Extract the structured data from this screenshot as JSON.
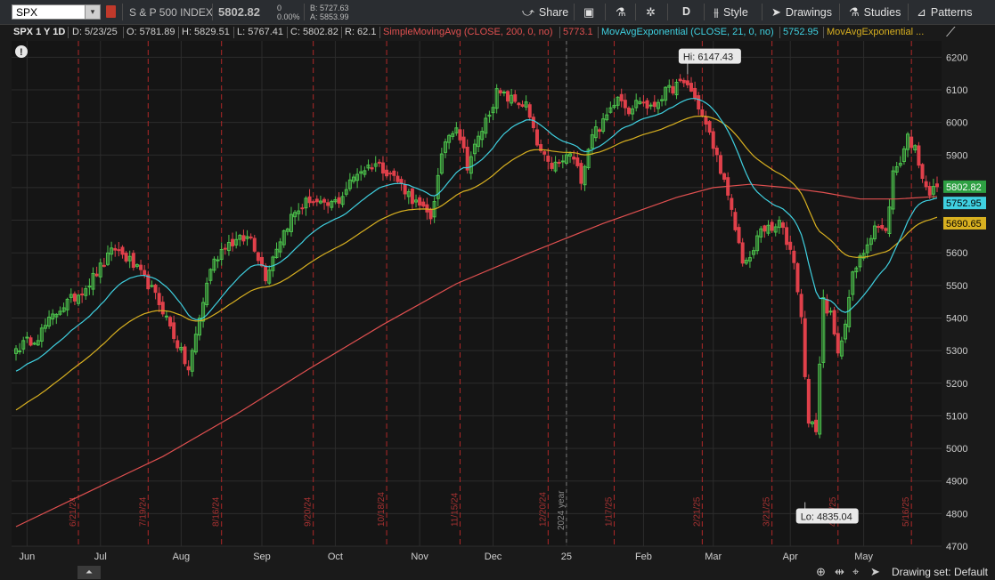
{
  "toolbar": {
    "symbol": "SPX",
    "dropdown_icon": "▾",
    "instrument_name": "S & P 500 INDEX",
    "last_price": "5802.82",
    "net_change": "0",
    "percent_change": "0.00%",
    "bid": "B: 5727.63",
    "ask": "A: 5853.99",
    "buttons": {
      "share": "Share",
      "timeframe": "D",
      "style": "Style",
      "drawings": "Drawings",
      "studies": "Studies",
      "patterns": "Patterns"
    }
  },
  "study_bar": {
    "title": "SPX 1 Y 1D",
    "date": "D: 5/23/25",
    "open": "O: 5781.89",
    "high": "H: 5829.51",
    "low": "L: 5767.41",
    "close": "C: 5802.82",
    "range": "R: 62.1",
    "sma_label": "SimpleMovingAvg (CLOSE, 200, 0, no)",
    "sma_value": "5773.1",
    "ema21_label": "MovAvgExponential (CLOSE, 21, 0, no)",
    "ema21_value": "5752.95",
    "ema3_label": "MovAvgExponential ..."
  },
  "alert_icon": "!",
  "colors": {
    "background": "#1a1a1a",
    "up": "#4cc34c",
    "down": "#e0404a",
    "sma200": "#e05050",
    "ema21": "#3fd0e0",
    "ema_yellow": "#d8b020",
    "period_line": "#b02828",
    "grid": "#2c2c2c"
  },
  "bottom_bar": {
    "drawing_set": "Drawing set: Default",
    "collapse_icon": "⏶"
  },
  "chart_data": {
    "type": "candlestick",
    "symbol": "SPX",
    "ylim": [
      4700,
      6250
    ],
    "yticks": [
      4700,
      4800,
      4900,
      5000,
      5100,
      5200,
      5300,
      5400,
      5500,
      5600,
      5700,
      5800,
      5900,
      6000,
      6100,
      6200
    ],
    "xticks": [
      {
        "label": "Jun",
        "index": 3
      },
      {
        "label": "Jul",
        "index": 23
      },
      {
        "label": "Aug",
        "index": 45
      },
      {
        "label": "Sep",
        "index": 67
      },
      {
        "label": "Oct",
        "index": 87
      },
      {
        "label": "Nov",
        "index": 110
      },
      {
        "label": "Dec",
        "index": 130
      },
      {
        "label": "25",
        "index": 150
      },
      {
        "label": "Feb",
        "index": 171
      },
      {
        "label": "Mar",
        "index": 190
      },
      {
        "label": "Apr",
        "index": 211
      },
      {
        "label": "May",
        "index": 231
      }
    ],
    "period_markers": [
      {
        "label": "6/21/24",
        "index": 17
      },
      {
        "label": "7/19/24",
        "index": 36
      },
      {
        "label": "8/16/24",
        "index": 56
      },
      {
        "label": "9/20/24",
        "index": 81
      },
      {
        "label": "10/18/24",
        "index": 101
      },
      {
        "label": "11/15/24",
        "index": 121
      },
      {
        "label": "12/20/24",
        "index": 145
      },
      {
        "label": "1/17/25",
        "index": 163
      },
      {
        "label": "2/21/25",
        "index": 187
      },
      {
        "label": "3/21/25",
        "index": 206
      },
      {
        "label": "4/17/25",
        "index": 224
      },
      {
        "label": "5/16/25",
        "index": 244
      }
    ],
    "year_marker": {
      "label": "2024 year",
      "index": 150
    },
    "high_label": {
      "text": "Hi: 6147.43",
      "index": 183,
      "value": 6147.43
    },
    "low_label": {
      "text": "Lo: 4835.04",
      "index": 215,
      "value": 4835.04
    },
    "anchors": [
      [
        0,
        5306
      ],
      [
        6,
        5346
      ],
      [
        12,
        5431
      ],
      [
        16,
        5464
      ],
      [
        20,
        5509
      ],
      [
        27,
        5615
      ],
      [
        31,
        5575
      ],
      [
        36,
        5505
      ],
      [
        40,
        5426
      ],
      [
        43,
        5346
      ],
      [
        47,
        5240
      ],
      [
        50,
        5400
      ],
      [
        53,
        5555
      ],
      [
        57,
        5627
      ],
      [
        60,
        5635
      ],
      [
        64,
        5649
      ],
      [
        68,
        5528
      ],
      [
        71,
        5620
      ],
      [
        75,
        5710
      ],
      [
        80,
        5765
      ],
      [
        84,
        5739
      ],
      [
        88,
        5762
      ],
      [
        93,
        5848
      ],
      [
        98,
        5875
      ],
      [
        102,
        5845
      ],
      [
        106,
        5795
      ],
      [
        110,
        5738
      ],
      [
        113,
        5710
      ],
      [
        117,
        5946
      ],
      [
        120,
        5996
      ],
      [
        123,
        5870
      ],
      [
        126,
        5950
      ],
      [
        131,
        6090
      ],
      [
        135,
        6070
      ],
      [
        139,
        6052
      ],
      [
        142,
        5930
      ],
      [
        145,
        5867
      ],
      [
        148,
        5870
      ],
      [
        151,
        5905
      ],
      [
        154,
        5830
      ],
      [
        157,
        5970
      ],
      [
        160,
        5996
      ],
      [
        164,
        6090
      ],
      [
        167,
        6040
      ],
      [
        170,
        6070
      ],
      [
        173,
        6040
      ],
      [
        176,
        6083
      ],
      [
        180,
        6114
      ],
      [
        183,
        6118
      ],
      [
        186,
        6050
      ],
      [
        189,
        5960
      ],
      [
        192,
        5860
      ],
      [
        195,
        5720
      ],
      [
        198,
        5580
      ],
      [
        200,
        5572
      ],
      [
        203,
        5680
      ],
      [
        206,
        5665
      ],
      [
        208,
        5693
      ],
      [
        212,
        5580
      ],
      [
        214,
        5396
      ],
      [
        216,
        5074
      ],
      [
        218,
        5062
      ],
      [
        220,
        5456
      ],
      [
        222,
        5405
      ],
      [
        224,
        5282
      ],
      [
        226,
        5398
      ],
      [
        228,
        5528
      ],
      [
        231,
        5604
      ],
      [
        234,
        5687
      ],
      [
        237,
        5660
      ],
      [
        239,
        5844
      ],
      [
        241,
        5886
      ],
      [
        243,
        5958
      ],
      [
        245,
        5916
      ],
      [
        247,
        5842
      ],
      [
        249,
        5781
      ],
      [
        251,
        5802.82
      ]
    ],
    "series": [
      {
        "name": "SimpleMovingAvg (CLOSE, 200, 0, no)",
        "last": 5773.1,
        "points": [
          [
            0,
            4760
          ],
          [
            20,
            4868
          ],
          [
            40,
            4975
          ],
          [
            60,
            5105
          ],
          [
            80,
            5245
          ],
          [
            100,
            5380
          ],
          [
            120,
            5505
          ],
          [
            140,
            5600
          ],
          [
            160,
            5690
          ],
          [
            180,
            5770
          ],
          [
            190,
            5800
          ],
          [
            200,
            5810
          ],
          [
            210,
            5800
          ],
          [
            220,
            5785
          ],
          [
            230,
            5765
          ],
          [
            240,
            5765
          ],
          [
            251,
            5773.1
          ]
        ]
      },
      {
        "name": "MovAvgExponential (CLOSE, 21, 0, no)",
        "last": 5752.95
      },
      {
        "name": "MovAvgExponential ...",
        "last": 5690.65
      }
    ]
  }
}
